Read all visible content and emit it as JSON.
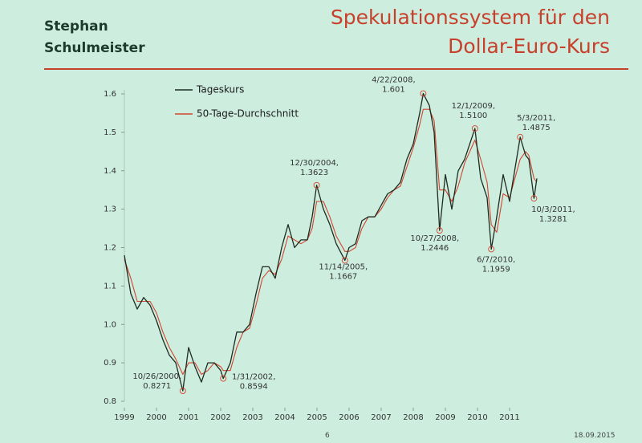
{
  "header": {
    "author": "Stephan Schulmeister"
  },
  "chart_data": {
    "type": "line",
    "title": "Spekulationssystem für den Dollar-Euro-Kurs",
    "x": [
      1999.0,
      1999.2,
      1999.4,
      1999.6,
      1999.8,
      2000.0,
      2000.2,
      2000.4,
      2000.6,
      2000.82,
      2001.0,
      2001.2,
      2001.4,
      2001.6,
      2001.8,
      2002.0,
      2002.08,
      2002.3,
      2002.5,
      2002.7,
      2002.9,
      2003.1,
      2003.3,
      2003.5,
      2003.7,
      2003.9,
      2004.1,
      2004.3,
      2004.5,
      2004.7,
      2004.85,
      2004.99,
      2005.2,
      2005.4,
      2005.6,
      2005.87,
      2006.0,
      2006.2,
      2006.4,
      2006.6,
      2006.8,
      2007.0,
      2007.2,
      2007.4,
      2007.6,
      2007.8,
      2008.0,
      2008.2,
      2008.31,
      2008.5,
      2008.65,
      2008.82,
      2009.0,
      2009.2,
      2009.4,
      2009.6,
      2009.92,
      2010.1,
      2010.3,
      2010.43,
      2010.6,
      2010.8,
      2011.0,
      2011.33,
      2011.5,
      2011.6,
      2011.76,
      2011.85
    ],
    "series": [
      {
        "name": "Tageskurs",
        "color": "#1e2a20",
        "values": [
          1.18,
          1.08,
          1.04,
          1.07,
          1.05,
          1.01,
          0.96,
          0.92,
          0.9,
          0.8271,
          0.94,
          0.89,
          0.85,
          0.9,
          0.9,
          0.88,
          0.8594,
          0.9,
          0.98,
          0.98,
          1.0,
          1.08,
          1.15,
          1.15,
          1.12,
          1.2,
          1.26,
          1.2,
          1.22,
          1.22,
          1.28,
          1.3623,
          1.3,
          1.26,
          1.21,
          1.1667,
          1.2,
          1.21,
          1.27,
          1.28,
          1.28,
          1.31,
          1.34,
          1.35,
          1.37,
          1.43,
          1.47,
          1.55,
          1.601,
          1.57,
          1.5,
          1.2446,
          1.39,
          1.3,
          1.4,
          1.43,
          1.51,
          1.38,
          1.33,
          1.1959,
          1.28,
          1.39,
          1.32,
          1.4875,
          1.44,
          1.43,
          1.3281,
          1.38
        ]
      },
      {
        "name": "50-Tage-Durchschnitt",
        "color": "#d2452f",
        "values": [
          1.17,
          1.12,
          1.06,
          1.06,
          1.06,
          1.03,
          0.98,
          0.94,
          0.91,
          0.87,
          0.9,
          0.9,
          0.87,
          0.88,
          0.9,
          0.89,
          0.88,
          0.88,
          0.94,
          0.98,
          0.99,
          1.05,
          1.12,
          1.14,
          1.13,
          1.17,
          1.23,
          1.22,
          1.21,
          1.22,
          1.25,
          1.32,
          1.32,
          1.28,
          1.23,
          1.19,
          1.19,
          1.2,
          1.25,
          1.28,
          1.28,
          1.3,
          1.33,
          1.35,
          1.36,
          1.41,
          1.46,
          1.52,
          1.56,
          1.56,
          1.53,
          1.35,
          1.35,
          1.32,
          1.36,
          1.42,
          1.48,
          1.43,
          1.37,
          1.26,
          1.24,
          1.34,
          1.33,
          1.43,
          1.45,
          1.44,
          1.38,
          1.37
        ]
      }
    ],
    "xlim": [
      1999,
      2012
    ],
    "xticks": [
      1999,
      2000,
      2001,
      2002,
      2003,
      2004,
      2005,
      2006,
      2007,
      2008,
      2009,
      2010,
      2011
    ],
    "ylim": [
      0.8,
      1.6
    ],
    "yticks": [
      0.8,
      0.9,
      {
        "value": 1.0,
        "label": "1.0"
      },
      1.1,
      1.2,
      1.3,
      1.4,
      1.5,
      1.6
    ],
    "annotations": [
      {
        "x": 2000.82,
        "y": 0.8271,
        "date": "10/26/2000,",
        "label": "0.8271"
      },
      {
        "x": 2002.08,
        "y": 0.8594,
        "date": "1/31/2002,",
        "label": "0.8594"
      },
      {
        "x": 2004.99,
        "y": 1.3623,
        "date": "12/30/2004,",
        "label": "1.3623"
      },
      {
        "x": 2005.87,
        "y": 1.1667,
        "date": "11/14/2005,",
        "label": "1.1667"
      },
      {
        "x": 2008.31,
        "y": 1.601,
        "date": "4/22/2008,",
        "label": "1.601"
      },
      {
        "x": 2008.82,
        "y": 1.2446,
        "date": "10/27/2008,",
        "label": "1.2446"
      },
      {
        "x": 2009.92,
        "y": 1.51,
        "date": "12/1/2009,",
        "label": "1.5100"
      },
      {
        "x": 2010.43,
        "y": 1.1959,
        "date": "6/7/2010,",
        "label": "1.1959"
      },
      {
        "x": 2011.33,
        "y": 1.4875,
        "date": "5/3/2011,",
        "label": "1.4875"
      },
      {
        "x": 2011.76,
        "y": 1.3281,
        "date": "10/3/2011,",
        "label": "1.3281"
      }
    ]
  },
  "footer": {
    "page": "6",
    "date": "18.09.2015"
  }
}
